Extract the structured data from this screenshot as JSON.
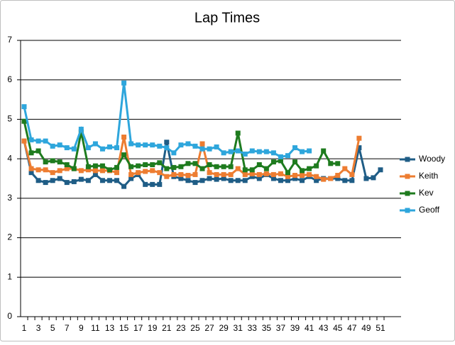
{
  "chart_data": {
    "type": "line",
    "title": "Lap Times",
    "categories": [
      1,
      null,
      3,
      null,
      5,
      null,
      7,
      null,
      9,
      null,
      11,
      null,
      13,
      null,
      15,
      null,
      17,
      null,
      19,
      null,
      21,
      null,
      23,
      null,
      25,
      null,
      27,
      null,
      29,
      null,
      31,
      null,
      33,
      null,
      35,
      null,
      37,
      null,
      39,
      null,
      41,
      null,
      43,
      null,
      45,
      null,
      47,
      null,
      49,
      null,
      51
    ],
    "series": [
      {
        "name": "Woody",
        "color": "#1f5d86",
        "values": [
          4.45,
          3.65,
          3.45,
          3.4,
          3.45,
          3.5,
          3.4,
          3.42,
          3.48,
          3.45,
          3.6,
          3.45,
          3.45,
          3.45,
          3.3,
          3.5,
          3.6,
          3.35,
          3.35,
          3.35,
          4.42,
          3.55,
          3.5,
          3.45,
          3.4,
          3.45,
          3.5,
          3.48,
          3.5,
          3.45,
          3.45,
          3.45,
          3.55,
          3.5,
          3.6,
          3.5,
          3.45,
          3.45,
          3.5,
          3.45,
          3.55,
          3.45,
          3.5,
          3.5,
          3.5,
          3.45,
          3.45,
          4.28,
          3.5,
          3.52,
          3.72
        ]
      },
      {
        "name": "Keith",
        "color": "#ed7d31",
        "values": [
          4.45,
          3.75,
          3.72,
          3.72,
          3.65,
          3.7,
          3.75,
          3.75,
          3.7,
          3.72,
          3.7,
          3.7,
          3.7,
          3.65,
          4.55,
          3.6,
          3.65,
          3.68,
          3.7,
          3.65,
          3.55,
          3.6,
          3.6,
          3.58,
          3.6,
          4.38,
          3.65,
          3.6,
          3.6,
          3.6,
          3.75,
          3.6,
          3.62,
          3.6,
          3.62,
          3.6,
          3.62,
          3.55,
          3.58,
          3.58,
          3.6,
          3.55,
          3.48,
          3.5,
          3.58,
          3.75,
          3.6,
          4.52,
          null,
          null,
          null
        ]
      },
      {
        "name": "Kev",
        "color": "#1e7b1e",
        "values": [
          4.95,
          4.15,
          4.2,
          3.92,
          3.95,
          3.92,
          3.85,
          3.75,
          4.68,
          3.8,
          3.82,
          3.82,
          3.72,
          3.78,
          4.1,
          3.8,
          3.82,
          3.85,
          3.85,
          3.9,
          3.75,
          3.78,
          3.8,
          3.88,
          3.88,
          3.75,
          3.85,
          3.8,
          3.8,
          3.8,
          4.65,
          3.72,
          3.72,
          3.85,
          3.75,
          3.92,
          3.95,
          3.65,
          3.92,
          3.7,
          3.75,
          3.82,
          4.2,
          3.88,
          3.88,
          null,
          null,
          null,
          null,
          null,
          null
        ]
      },
      {
        "name": "Geoff",
        "color": "#2ea6dc",
        "values": [
          5.32,
          4.48,
          4.45,
          4.45,
          4.32,
          4.35,
          4.28,
          4.25,
          4.75,
          4.28,
          4.38,
          4.25,
          4.3,
          4.28,
          5.92,
          4.38,
          4.35,
          4.35,
          4.35,
          4.32,
          4.28,
          4.15,
          4.35,
          4.38,
          4.32,
          4.25,
          4.25,
          4.3,
          4.15,
          4.18,
          4.2,
          4.12,
          4.2,
          4.18,
          4.18,
          4.15,
          4.05,
          4.08,
          4.28,
          4.18,
          4.2,
          null,
          null,
          null,
          null,
          null,
          null,
          null,
          null,
          null,
          null
        ]
      }
    ],
    "ylim": [
      0,
      7
    ],
    "yticks": [
      0,
      1,
      2,
      3,
      4,
      5,
      6,
      7
    ],
    "grid": true,
    "legend": "right"
  }
}
